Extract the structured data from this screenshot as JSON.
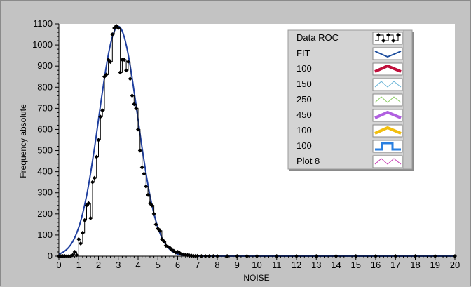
{
  "chart_data": {
    "type": "line",
    "title": "",
    "xlabel": "NOISE",
    "ylabel": "Frequency absolute",
    "xlim": [
      0,
      20
    ],
    "ylim": [
      0,
      1100
    ],
    "x_ticks": [
      "0",
      "1",
      "2",
      "3",
      "4",
      "5",
      "6",
      "7",
      "8",
      "9",
      "10",
      "11",
      "12",
      "13",
      "14",
      "15",
      "16",
      "17",
      "18",
      "19",
      "20"
    ],
    "y_ticks": [
      "0",
      "100",
      "200",
      "300",
      "400",
      "500",
      "600",
      "700",
      "800",
      "900",
      "1000",
      "1100"
    ],
    "grid": false,
    "legend_position": "top-right",
    "colors": {
      "plot_bg": "#ffffff",
      "panel_bg": "#c3c3c3",
      "data": "#000000",
      "fit": "#1f3f9f"
    },
    "legend": [
      {
        "name": "Data ROC",
        "color": "#000000",
        "style": "step-markers"
      },
      {
        "name": "FIT",
        "color": "#1f4f9f",
        "style": "line"
      },
      {
        "name": "100",
        "color": "#c0103c",
        "style": "thick"
      },
      {
        "name": "150",
        "color": "#69b4d8",
        "style": "thin"
      },
      {
        "name": "250",
        "color": "#8ccc66",
        "style": "thin"
      },
      {
        "name": "450",
        "color": "#b060e0",
        "style": "thick"
      },
      {
        "name": "100",
        "color": "#f2bf0f",
        "style": "thick"
      },
      {
        "name": "100",
        "color": "#2a7fe0",
        "style": "step"
      },
      {
        "name": "Plot 8",
        "color": "#c83cb4",
        "style": "thin"
      }
    ],
    "series": [
      {
        "name": "Data ROC",
        "x": [
          0.0,
          0.1,
          0.2,
          0.3,
          0.4,
          0.5,
          0.6,
          0.7,
          0.8,
          0.9,
          1.0,
          1.1,
          1.2,
          1.3,
          1.4,
          1.5,
          1.6,
          1.7,
          1.8,
          1.9,
          2.0,
          2.1,
          2.2,
          2.3,
          2.4,
          2.5,
          2.6,
          2.7,
          2.8,
          2.9,
          3.0,
          3.1,
          3.2,
          3.3,
          3.4,
          3.5,
          3.6,
          3.7,
          3.8,
          3.9,
          4.0,
          4.1,
          4.2,
          4.3,
          4.4,
          4.5,
          4.6,
          4.7,
          4.8,
          4.9,
          5.0,
          5.1,
          5.2,
          5.3,
          5.4,
          5.5,
          5.6,
          5.7,
          5.8,
          5.9,
          6.0,
          6.1,
          6.2,
          6.3,
          6.4,
          6.5,
          6.6,
          6.7,
          6.8,
          6.9,
          7.0,
          7.2,
          7.4,
          7.6,
          7.8,
          8.0,
          8.5,
          9.0,
          9.5,
          10.0,
          11.0,
          12.0,
          13.0,
          14.0,
          15.0,
          16.0,
          17.0,
          18.0,
          19.0,
          20.0
        ],
        "y": [
          0,
          0,
          0,
          0,
          0,
          0,
          0,
          5,
          20,
          5,
          80,
          60,
          110,
          170,
          240,
          250,
          180,
          350,
          370,
          470,
          550,
          660,
          690,
          850,
          860,
          930,
          920,
          1050,
          1080,
          1090,
          1080,
          870,
          930,
          930,
          880,
          920,
          840,
          760,
          720,
          700,
          600,
          500,
          420,
          390,
          330,
          290,
          250,
          240,
          200,
          150,
          130,
          120,
          80,
          70,
          50,
          45,
          40,
          30,
          25,
          18,
          20,
          15,
          10,
          8,
          6,
          5,
          3,
          2,
          1,
          1,
          1,
          0,
          0,
          0,
          0,
          0,
          0,
          0,
          0,
          0,
          0,
          0,
          0,
          0,
          0,
          0,
          0,
          0,
          0,
          0
        ]
      },
      {
        "name": "FIT",
        "mu": 3.0,
        "sigma": 0.98,
        "amplitude": 1088
      }
    ]
  }
}
